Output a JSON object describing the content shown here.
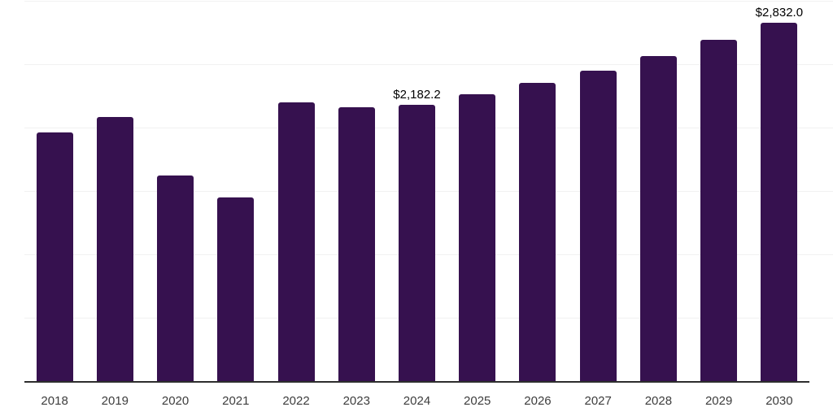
{
  "chart_data": {
    "type": "bar",
    "categories": [
      "2018",
      "2019",
      "2020",
      "2021",
      "2022",
      "2023",
      "2024",
      "2025",
      "2026",
      "2027",
      "2028",
      "2029",
      "2030"
    ],
    "values": [
      1965,
      2085,
      1625,
      1455,
      2200,
      2165,
      2182.2,
      2265,
      2355,
      2455,
      2565,
      2695,
      2832
    ],
    "series_name": "market-size",
    "title": "",
    "xlabel": "",
    "ylabel": "",
    "ylim": [
      0,
      3000
    ],
    "gridline_step": 500,
    "grid": "horizontal-only",
    "legend": "none",
    "y_tick_labels_visible": false,
    "data_labels": [
      {
        "category": "2024",
        "text": "$2,182.2"
      },
      {
        "category": "2030",
        "text": "$2,832.0"
      }
    ],
    "colors": {
      "bar": "#36114F",
      "grid": "#f1f1f1",
      "axis": "#2d2d2d",
      "tick_label": "#3d3d3d",
      "value_label": "#000000",
      "background": "#ffffff"
    }
  }
}
